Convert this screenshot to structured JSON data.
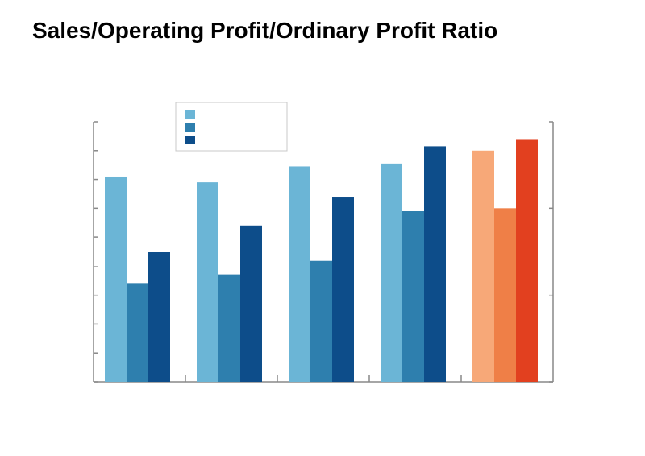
{
  "page": {
    "title": "Sales/Operating Profit/Ordinary Profit Ratio"
  },
  "chart_data": {
    "type": "bar",
    "title": "Sales/Operating Profit/Ordinary Profit Ratio",
    "categories": [
      "",
      "",
      "",
      "",
      ""
    ],
    "ylim": [
      0,
      9
    ],
    "y_ticks": 9,
    "legend_position": "top-left",
    "series": [
      {
        "name": "",
        "values": [
          7.1,
          6.9,
          7.45,
          7.55,
          8.0
        ],
        "colors": [
          "#6bb5d6",
          "#6bb5d6",
          "#6bb5d6",
          "#6bb5d6",
          "#f7a878"
        ]
      },
      {
        "name": "",
        "values": [
          3.4,
          3.7,
          4.2,
          5.9,
          6.0
        ],
        "colors": [
          "#2e7fae",
          "#2e7fae",
          "#2e7fae",
          "#2e7fae",
          "#ef7f47"
        ]
      },
      {
        "name": "",
        "values": [
          4.5,
          5.4,
          6.4,
          8.15,
          8.4
        ],
        "colors": [
          "#0d4d8a",
          "#0d4d8a",
          "#0d4d8a",
          "#0d4d8a",
          "#e2401f"
        ]
      }
    ],
    "legend_colors": [
      "#6bb5d6",
      "#2e7fae",
      "#0d4d8a"
    ],
    "axis_color": "#888888"
  }
}
